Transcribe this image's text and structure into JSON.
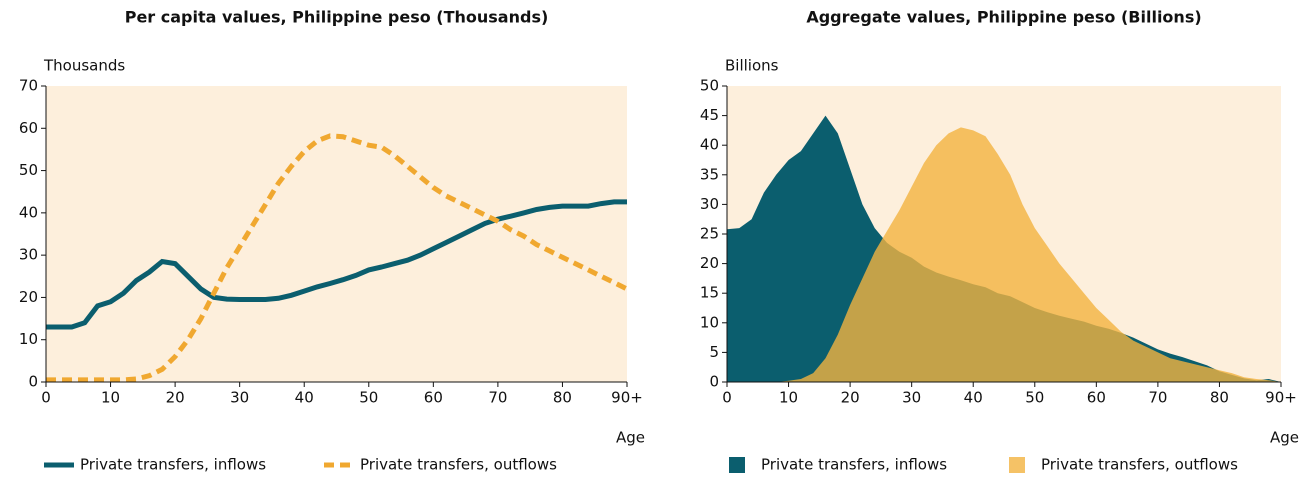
{
  "chart_data": [
    {
      "type": "line",
      "title": "Per capita values, Philippine peso (Thousands)",
      "y_label": "Thousands",
      "x_label": "Age",
      "x": [
        0,
        2,
        4,
        6,
        8,
        10,
        12,
        14,
        16,
        18,
        20,
        22,
        24,
        26,
        28,
        30,
        32,
        34,
        36,
        38,
        40,
        42,
        44,
        46,
        48,
        50,
        52,
        54,
        56,
        58,
        60,
        62,
        64,
        66,
        68,
        70,
        72,
        74,
        76,
        78,
        80,
        82,
        84,
        86,
        88,
        90
      ],
      "xlim": [
        0,
        90
      ],
      "xticks": [
        0,
        10,
        20,
        30,
        40,
        50,
        60,
        70,
        80,
        {
          "value": 90,
          "label": "90+"
        }
      ],
      "ylim": [
        0,
        70
      ],
      "yticks": [
        0,
        10,
        20,
        30,
        40,
        50,
        60,
        70
      ],
      "series": [
        {
          "name": "Private transfers, inflows",
          "color": "#0b5e6e",
          "linestyle": "solid",
          "values": [
            13,
            13,
            13,
            14,
            18,
            19,
            21,
            24,
            26,
            28.5,
            28,
            25,
            22,
            20,
            19.6,
            19.5,
            19.5,
            19.5,
            19.8,
            20.5,
            21.5,
            22.5,
            23.3,
            24.2,
            25.2,
            26.5,
            27.2,
            28,
            28.8,
            30,
            31.5,
            33,
            34.5,
            36,
            37.5,
            38.5,
            39.2,
            40,
            40.8,
            41.3,
            41.6,
            41.6,
            41.6,
            42.2,
            42.6,
            42.6
          ]
        },
        {
          "name": "Private transfers, outflows",
          "color": "#f0a830",
          "linestyle": "dashed",
          "values": [
            0.5,
            0.5,
            0.5,
            0.5,
            0.5,
            0.5,
            0.5,
            0.7,
            1.5,
            3,
            6,
            10,
            15,
            21,
            27,
            32,
            37,
            42,
            47,
            51,
            54.5,
            57,
            58.2,
            58,
            57,
            56,
            55.5,
            53.5,
            51,
            48.5,
            46,
            44,
            42.5,
            41,
            39.5,
            38,
            36,
            34.5,
            32.5,
            31,
            29.5,
            28,
            26.5,
            25,
            23.5,
            22
          ]
        }
      ]
    },
    {
      "type": "area",
      "title": "Aggregate values, Philippine peso (Billions)",
      "y_label": "Billions",
      "x_label": "Age",
      "x": [
        0,
        2,
        4,
        6,
        8,
        10,
        12,
        14,
        16,
        18,
        20,
        22,
        24,
        26,
        28,
        30,
        32,
        34,
        36,
        38,
        40,
        42,
        44,
        46,
        48,
        50,
        52,
        54,
        56,
        58,
        60,
        62,
        64,
        66,
        68,
        70,
        72,
        74,
        76,
        78,
        80,
        82,
        84,
        86,
        88,
        90
      ],
      "xlim": [
        0,
        90
      ],
      "xticks": [
        0,
        10,
        20,
        30,
        40,
        50,
        60,
        70,
        80,
        {
          "value": 90,
          "label": "90+"
        }
      ],
      "ylim": [
        0,
        50
      ],
      "yticks": [
        0,
        5,
        10,
        15,
        20,
        25,
        30,
        35,
        40,
        45,
        50
      ],
      "series": [
        {
          "name": "Private transfers, inflows",
          "color": "#0b5e6e",
          "values": [
            25.8,
            26,
            27.5,
            32,
            35,
            37.5,
            39,
            42,
            45,
            42,
            36,
            30,
            26,
            23.5,
            22,
            21,
            19.5,
            18.5,
            17.8,
            17.2,
            16.5,
            16,
            15,
            14.5,
            13.5,
            12.5,
            11.8,
            11.2,
            10.7,
            10.2,
            9.5,
            9,
            8.3,
            7.5,
            6.5,
            5.5,
            4.8,
            4.2,
            3.5,
            2.8,
            1.8,
            1.2,
            0.6,
            0.3,
            0.5,
            0
          ]
        },
        {
          "name": "Private transfers, outflows",
          "color": "#f2b340",
          "values": [
            0,
            0,
            0,
            0,
            0,
            0.2,
            0.5,
            1.5,
            4,
            8,
            13,
            17.5,
            22,
            25.5,
            29,
            33,
            37,
            40,
            42,
            43,
            42.5,
            41.5,
            38.5,
            35,
            30,
            26,
            23,
            20,
            17.5,
            15,
            12.5,
            10.5,
            8.5,
            7,
            6,
            5,
            4,
            3.5,
            3,
            2.5,
            2,
            1.5,
            0.8,
            0.5,
            0.3,
            0
          ]
        }
      ]
    }
  ]
}
